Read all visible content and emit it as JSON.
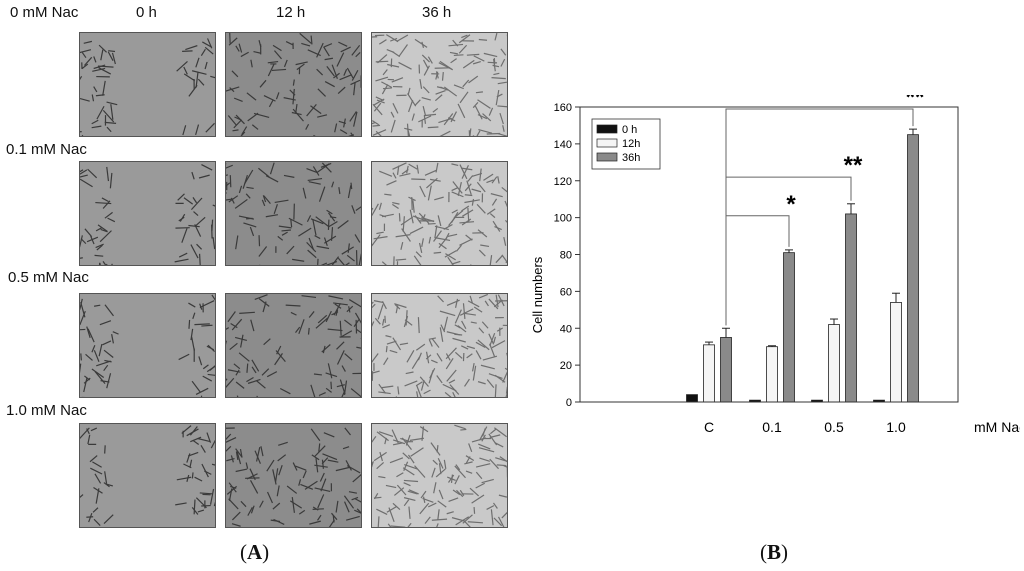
{
  "panel_a": {
    "label": "A",
    "columns": [
      "0 h",
      "12 h",
      "36 h"
    ],
    "rows": [
      "0 mM Nac",
      "0.1 mM Nac",
      "0.5 mM Nac",
      "1.0 mM Nac"
    ]
  },
  "panel_b": {
    "label": "B"
  },
  "chart_data": {
    "type": "bar",
    "categories": [
      "C",
      "0.1",
      "0.5",
      "1.0"
    ],
    "category_axis_suffix": "mM Nac",
    "ylabel": "Cell numbers",
    "xlabel": "",
    "ylim": [
      0,
      160
    ],
    "yticks": [
      0,
      20,
      40,
      60,
      80,
      100,
      120,
      140,
      160
    ],
    "legend_position": "top-left",
    "series": [
      {
        "name": "0 h",
        "values": [
          4,
          1,
          1,
          1
        ],
        "errors": [
          0,
          0,
          0,
          0
        ],
        "color": "#111111"
      },
      {
        "name": "12h",
        "values": [
          31,
          30,
          42,
          54
        ],
        "errors": [
          1.5,
          0.5,
          3,
          5
        ],
        "color": "#f5f5f5"
      },
      {
        "name": "36h",
        "values": [
          35,
          81,
          102,
          145
        ],
        "errors": [
          5,
          1.5,
          5.5,
          3
        ],
        "color": "#8a8a8a"
      }
    ],
    "significance": [
      {
        "compare": [
          "C",
          "0.1"
        ],
        "label": "*"
      },
      {
        "compare": [
          "C",
          "0.5"
        ],
        "label": "**"
      },
      {
        "compare": [
          "C",
          "1.0"
        ],
        "label": "**"
      }
    ]
  }
}
